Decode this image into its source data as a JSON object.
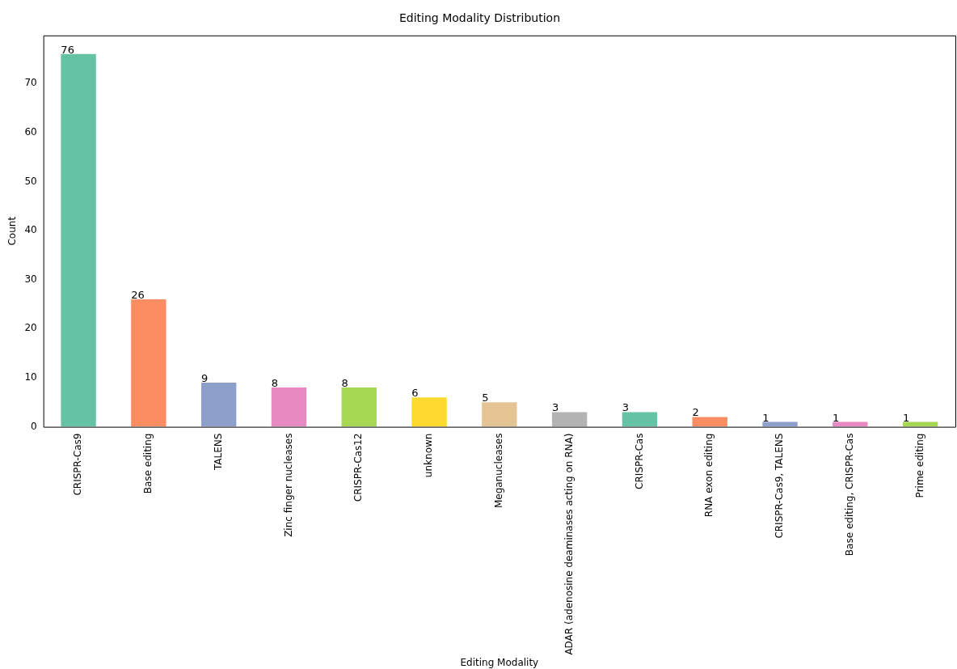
{
  "chart_data": {
    "type": "bar",
    "title": "Editing Modality Distribution",
    "xlabel": "Editing Modality",
    "ylabel": "Count",
    "categories": [
      "CRISPR-Cas9",
      "Base editing",
      "TALENS",
      "Zinc finger nucleases",
      "CRISPR-Cas12",
      "unknown",
      "Meganucleases",
      "ADAR (adenosine deaminases acting on RNA)",
      "CRISPR-Cas",
      "RNA exon editing",
      "CRISPR-Cas9, TALENS",
      "Base editing, CRISPR-Cas",
      "Prime editing"
    ],
    "values": [
      76,
      26,
      9,
      8,
      8,
      6,
      5,
      3,
      3,
      2,
      1,
      1,
      1
    ],
    "colors": [
      "#66c2a5",
      "#fc8d62",
      "#8da0cb",
      "#e78ac3",
      "#a6d854",
      "#ffd92f",
      "#e5c494",
      "#b3b3b3",
      "#66c2a5",
      "#fc8d62",
      "#8da0cb",
      "#e78ac3",
      "#a6d854"
    ],
    "ylim": [
      0,
      79.8
    ],
    "yticks": [
      0,
      10,
      20,
      30,
      40,
      50,
      60,
      70
    ],
    "data_labels": true
  }
}
